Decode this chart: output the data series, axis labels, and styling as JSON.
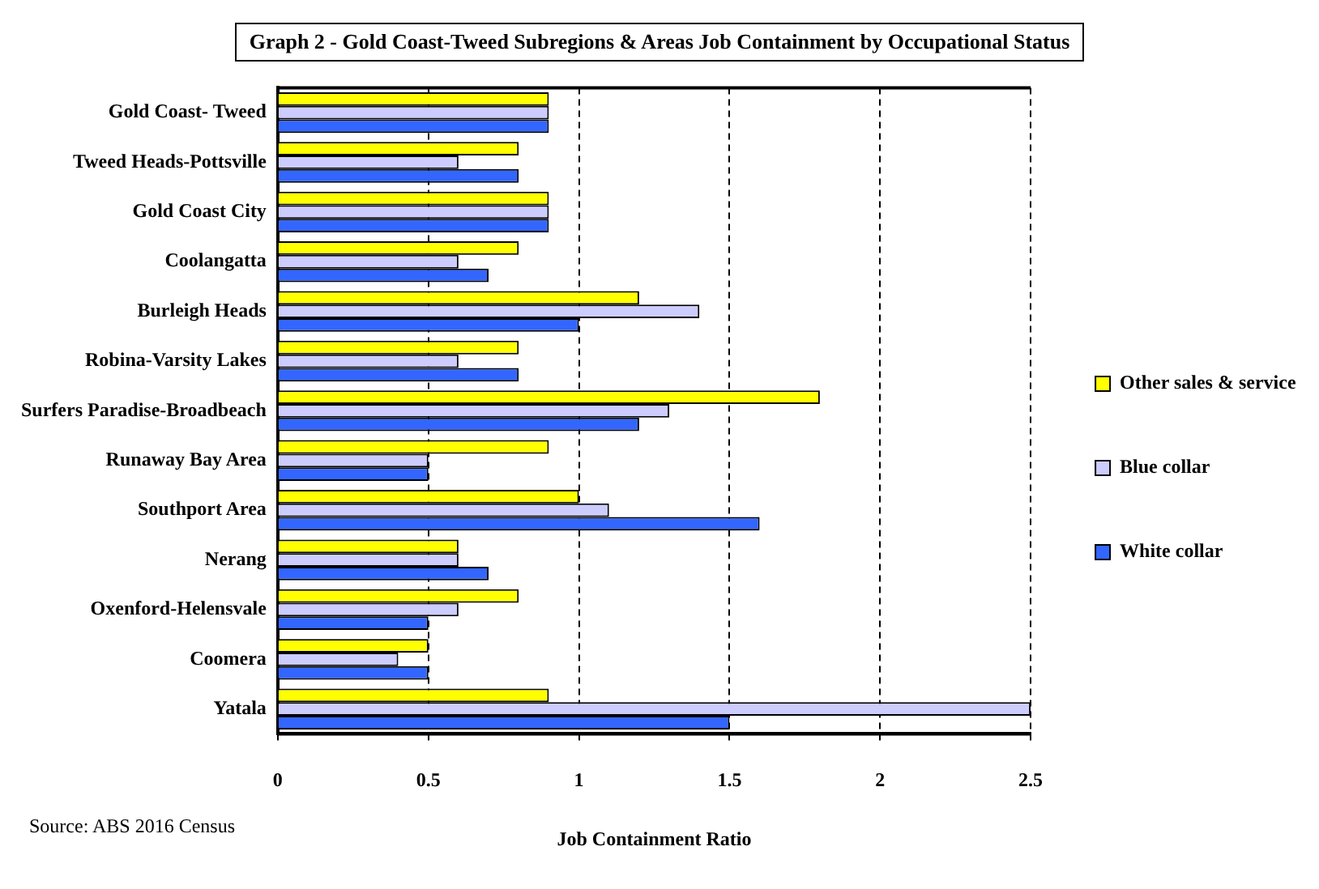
{
  "chart_data": {
    "type": "bar",
    "orientation": "horizontal",
    "title": "Graph 2 - Gold Coast-Tweed Subregions & Areas  Job Containment by Occupational Status",
    "xlabel": "Job Containment Ratio",
    "categories": [
      "Gold Coast- Tweed",
      "Tweed Heads-Pottsville",
      "Gold Coast City",
      "Coolangatta",
      "Burleigh Heads",
      "Robina-Varsity Lakes",
      "Surfers Paradise-Broadbeach",
      "Runaway Bay Area",
      "Southport Area",
      "Nerang",
      "Oxenford-Helensvale",
      "Coomera",
      "Yatala"
    ],
    "series": [
      {
        "name": "Other sales & service",
        "color": "#ffff00",
        "values": [
          0.9,
          0.8,
          0.9,
          0.8,
          1.2,
          0.8,
          1.8,
          0.9,
          1.0,
          0.6,
          0.8,
          0.5,
          0.9
        ]
      },
      {
        "name": "Blue collar",
        "color": "#ccccff",
        "values": [
          0.9,
          0.6,
          0.9,
          0.6,
          1.4,
          0.6,
          1.3,
          0.5,
          1.1,
          0.6,
          0.6,
          0.4,
          2.5
        ]
      },
      {
        "name": "White collar",
        "color": "#3366ff",
        "values": [
          0.9,
          0.8,
          0.9,
          0.7,
          1.0,
          0.8,
          1.2,
          0.5,
          1.6,
          0.7,
          0.5,
          0.5,
          1.5
        ]
      }
    ],
    "xlim": [
      0,
      2.5
    ],
    "xticks": [
      0,
      0.5,
      1,
      1.5,
      2,
      2.5
    ],
    "grid": "x",
    "legend": "right",
    "annotations": [
      "Source: ABS 2016 Census"
    ]
  }
}
